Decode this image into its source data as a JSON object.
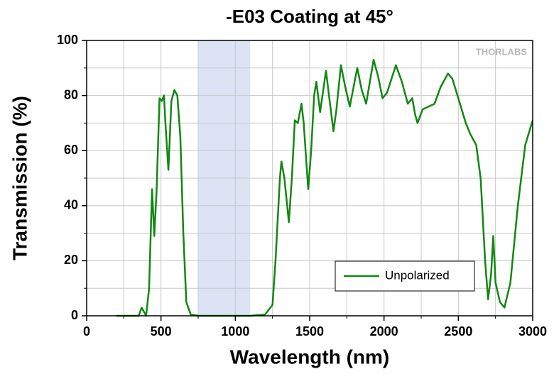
{
  "chart_data": {
    "type": "line",
    "title": "-E03 Coating at 45°",
    "x_label": "Wavelength (nm)",
    "y_label": "Transmission (%)",
    "watermark": "THORLABS",
    "x": [
      200,
      350,
      370,
      390,
      400,
      420,
      440,
      455,
      470,
      490,
      505,
      520,
      530,
      550,
      570,
      590,
      610,
      630,
      650,
      670,
      700,
      750,
      1100,
      1200,
      1250,
      1270,
      1300,
      1310,
      1330,
      1360,
      1380,
      1400,
      1420,
      1445,
      1460,
      1490,
      1510,
      1530,
      1545,
      1570,
      1610,
      1630,
      1660,
      1680,
      1710,
      1740,
      1770,
      1820,
      1850,
      1880,
      1930,
      1960,
      1990,
      2020,
      2080,
      2120,
      2160,
      2190,
      2210,
      2225,
      2260,
      2300,
      2340,
      2380,
      2430,
      2460,
      2500,
      2550,
      2580,
      2620,
      2650,
      2680,
      2700,
      2720,
      2735,
      2750,
      2780,
      2810,
      2850,
      2900,
      2950,
      3000
    ],
    "series": [
      {
        "name": "Unpolarized",
        "color": "#118811",
        "values": [
          0,
          0,
          3,
          1,
          0,
          10,
          46,
          29,
          45,
          79,
          78,
          80,
          70,
          53,
          78,
          82,
          80,
          65,
          30,
          5,
          0.5,
          0,
          0,
          0.5,
          4,
          20,
          50,
          56,
          50,
          34,
          50,
          71,
          70,
          77,
          70,
          46,
          60,
          80,
          85,
          74,
          89,
          80,
          67,
          75,
          91,
          83,
          76,
          90,
          82,
          77,
          93,
          87,
          79,
          81,
          91,
          85,
          77,
          79,
          73,
          70,
          75,
          76,
          77,
          83,
          88,
          86,
          79,
          70,
          66,
          62,
          50,
          20,
          6,
          15,
          29,
          12,
          5,
          3,
          12,
          40,
          62,
          71
        ]
      }
    ],
    "shaded_region": [
      750,
      1100
    ],
    "shaded_color": "#dbe3f5",
    "xlim": [
      0,
      3000
    ],
    "xticks": [
      0,
      500,
      1000,
      1500,
      2000,
      2500,
      3000
    ],
    "minor_xticks": [
      250,
      750,
      1250,
      1750,
      2250,
      2750
    ],
    "ylim": [
      0,
      100
    ],
    "yticks": [
      0,
      20,
      40,
      60,
      80,
      100
    ],
    "minor_yticks": [
      10,
      30,
      50,
      70,
      90
    ],
    "grid": true,
    "legend": "lower right"
  }
}
